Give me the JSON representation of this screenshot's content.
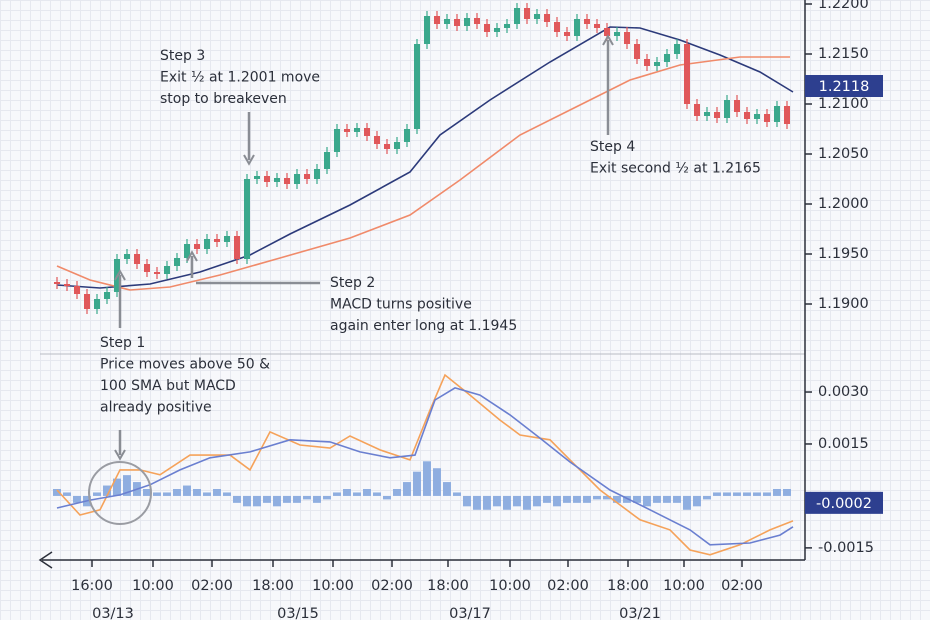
{
  "chart_data": [
    {
      "type": "candlestick",
      "ylim": [
        1.185,
        1.2204
      ],
      "yticks": [
        {
          "value": 1.19,
          "label": "1.1900"
        },
        {
          "value": 1.195,
          "label": "1.1950"
        },
        {
          "value": 1.2,
          "label": "1.2000"
        },
        {
          "value": 1.205,
          "label": "1.2050"
        },
        {
          "value": 1.21,
          "label": "1.2100"
        },
        {
          "value": 1.215,
          "label": "1.2150"
        },
        {
          "value": 1.22,
          "label": "1.2200"
        }
      ],
      "xlim": [
        0,
        74
      ],
      "up_color": "#3aa88c",
      "down_color": "#e0575a",
      "open": [
        1.1922,
        1.192,
        1.1918,
        1.191,
        1.1895,
        1.1905,
        1.1912,
        1.1945,
        1.195,
        1.194,
        1.1932,
        1.193,
        1.1938,
        1.1946,
        1.196,
        1.1955,
        1.1965,
        1.1962,
        1.1968,
        1.1945,
        1.2025,
        1.2028,
        1.2022,
        1.2026,
        1.202,
        1.203,
        1.2025,
        1.2035,
        1.2052,
        1.2075,
        1.2072,
        1.2076,
        1.2068,
        1.206,
        1.2055,
        1.2062,
        1.2075,
        1.216,
        1.2188,
        1.218,
        1.2185,
        1.2178,
        1.2186,
        1.218,
        1.2172,
        1.2176,
        1.218,
        1.2196,
        1.2185,
        1.219,
        1.2182,
        1.2172,
        1.2168,
        1.2185,
        1.218,
        1.2176,
        1.2168,
        1.2172,
        1.216,
        1.2145,
        1.2138,
        1.2142,
        1.215,
        1.216,
        1.21,
        1.2088,
        1.2092,
        1.2086,
        1.2104,
        1.2092,
        1.2085,
        1.209,
        1.2082,
        1.2098
      ],
      "high": [
        1.1927,
        1.1925,
        1.1923,
        1.1915,
        1.191,
        1.1917,
        1.195,
        1.1955,
        1.1955,
        1.1945,
        1.1937,
        1.1943,
        1.1951,
        1.1965,
        1.1965,
        1.197,
        1.197,
        1.1973,
        1.1973,
        1.203,
        1.2033,
        1.2033,
        1.2031,
        1.2031,
        1.2035,
        1.2035,
        1.204,
        1.2057,
        1.208,
        1.208,
        1.2081,
        1.2081,
        1.2073,
        1.2065,
        1.2067,
        1.208,
        1.2165,
        1.2193,
        1.2193,
        1.219,
        1.219,
        1.2191,
        1.2191,
        1.2185,
        1.2181,
        1.2185,
        1.2201,
        1.2201,
        1.2195,
        1.2195,
        1.2187,
        1.2177,
        1.219,
        1.219,
        1.2185,
        1.2181,
        1.2177,
        1.2177,
        1.2165,
        1.215,
        1.2147,
        1.2155,
        1.2165,
        1.2165,
        1.2105,
        1.2097,
        1.2097,
        1.2109,
        1.2109,
        1.2097,
        1.2095,
        1.2095,
        1.2103,
        1.2103
      ],
      "low": [
        1.1915,
        1.1913,
        1.1905,
        1.189,
        1.189,
        1.19,
        1.1907,
        1.194,
        1.1935,
        1.1927,
        1.1925,
        1.1925,
        1.1933,
        1.1941,
        1.195,
        1.195,
        1.1957,
        1.1957,
        1.194,
        1.194,
        1.202,
        1.2017,
        1.2017,
        1.2015,
        1.2015,
        1.202,
        1.202,
        1.203,
        1.2047,
        1.2067,
        1.2067,
        1.2063,
        1.2055,
        1.205,
        1.205,
        1.2057,
        1.207,
        1.2155,
        1.2175,
        1.2175,
        1.2173,
        1.2173,
        1.2175,
        1.2167,
        1.2167,
        1.2171,
        1.2175,
        1.218,
        1.218,
        1.2177,
        1.2167,
        1.2163,
        1.2163,
        1.2175,
        1.2171,
        1.2163,
        1.2163,
        1.2155,
        1.214,
        1.2133,
        1.2133,
        1.2137,
        1.2145,
        1.2095,
        1.2083,
        1.2083,
        1.2081,
        1.2081,
        1.2087,
        1.208,
        1.208,
        1.2077,
        1.2077,
        1.2075
      ],
      "close": [
        1.192,
        1.1918,
        1.191,
        1.1895,
        1.1905,
        1.1912,
        1.1945,
        1.195,
        1.194,
        1.1932,
        1.193,
        1.1938,
        1.1946,
        1.196,
        1.1955,
        1.1965,
        1.1962,
        1.1968,
        1.1945,
        1.2025,
        1.2028,
        1.2022,
        1.2026,
        1.202,
        1.203,
        1.2025,
        1.2035,
        1.2052,
        1.2075,
        1.2072,
        1.2076,
        1.2068,
        1.206,
        1.2055,
        1.2062,
        1.2075,
        1.216,
        1.2188,
        1.218,
        1.2185,
        1.2178,
        1.2186,
        1.218,
        1.2172,
        1.2176,
        1.218,
        1.2196,
        1.2185,
        1.219,
        1.2182,
        1.2172,
        1.2168,
        1.2185,
        1.218,
        1.2176,
        1.2168,
        1.2172,
        1.216,
        1.2145,
        1.2138,
        1.2142,
        1.215,
        1.216,
        1.21,
        1.2088,
        1.2092,
        1.2086,
        1.2104,
        1.2092,
        1.2085,
        1.209,
        1.2082,
        1.2098,
        1.208
      ],
      "lines": [
        {
          "color": "#2c3a7a",
          "x": [
            0,
            4.3,
            9.3,
            14.3,
            19.3,
            23.3,
            29.3,
            35.3,
            38.3,
            43.3,
            49.3,
            55.3,
            58.3,
            62.3,
            66.3,
            70.3,
            73.6
          ],
          "values": [
            1.1919,
            1.1916,
            1.192,
            1.1932,
            1.1949,
            1.197,
            1.1999,
            1.2032,
            1.2069,
            1.2104,
            1.2142,
            1.2177,
            1.2176,
            1.2164,
            1.2149,
            1.2132,
            1.2112
          ]
        },
        {
          "color": "#f08a6a",
          "x": [
            0,
            3.3,
            7.3,
            11.3,
            16.3,
            22.3,
            29.3,
            35.3,
            40.3,
            46.3,
            52.3,
            57.3,
            62.3,
            68.3,
            73.3
          ],
          "values": [
            1.1938,
            1.1924,
            1.1914,
            1.1917,
            1.1929,
            1.1946,
            1.1966,
            1.1989,
            1.2024,
            1.2069,
            1.2099,
            1.2124,
            1.2139,
            1.2147,
            1.2147
          ]
        }
      ],
      "last_value": 1.2118,
      "annotations": [
        {
          "lines": [
            "Step 1",
            "Price moves above 50 &",
            "100 SMA but MACD",
            "already positive"
          ]
        },
        {
          "lines": [
            "Step 2",
            "MACD turns positive",
            "again enter long at 1.1945"
          ]
        },
        {
          "lines": [
            "Step 3",
            "Exit ½ at 1.2001 move",
            "stop to breakeven"
          ]
        },
        {
          "lines": [
            "Step 4",
            "Exit second ½ at 1.2165"
          ]
        }
      ]
    },
    {
      "type": "macd",
      "ylim": [
        -0.00185,
        0.00404
      ],
      "yticks": [
        {
          "value": 0.003,
          "label": "0.0030"
        },
        {
          "value": 0.0015,
          "label": "0.0015"
        },
        {
          "value": -0.0015,
          "label": "-0.0015"
        }
      ],
      "xlim": [
        0,
        74
      ],
      "xticks": [
        {
          "value": 3.5,
          "label": "16:00"
        },
        {
          "value": 9.6,
          "label": "10:00"
        },
        {
          "value": 15.5,
          "label": "02:00"
        },
        {
          "value": 21.6,
          "label": "18:00"
        },
        {
          "value": 27.6,
          "label": "10:00"
        },
        {
          "value": 33.5,
          "label": "02:00"
        },
        {
          "value": 39.1,
          "label": "18:00"
        },
        {
          "value": 45.3,
          "label": "10:00"
        },
        {
          "value": 51.1,
          "label": "02:00"
        },
        {
          "value": 57.1,
          "label": "18:00"
        },
        {
          "value": 62.7,
          "label": "10:00"
        },
        {
          "value": 68.5,
          "label": "02:00"
        }
      ],
      "date_labels": [
        {
          "value": 5.6,
          "label": "03/13"
        },
        {
          "value": 24.1,
          "label": "03/15"
        },
        {
          "value": 41.3,
          "label": "03/17"
        },
        {
          "value": 58.3,
          "label": "03/21"
        }
      ],
      "histogram_color": "#8faee0",
      "histogram": [
        0.0002,
        0.0001,
        -0.0002,
        -0.0003,
        0.0001,
        0.0003,
        0.0005,
        0.0006,
        0.0004,
        0.0002,
        0.0001,
        0.0001,
        0.0002,
        0.0003,
        0.0002,
        0.0001,
        0.0002,
        0.0001,
        -0.0002,
        -0.0003,
        -0.0003,
        -0.0002,
        -0.0003,
        -0.0002,
        -0.0002,
        -0.0001,
        -0.0002,
        -0.0001,
        0.0001,
        0.0002,
        0.0001,
        0.0002,
        0.0001,
        -0.0001,
        0.0002,
        0.0004,
        0.0007,
        0.001,
        0.0008,
        0.0004,
        0.0001,
        -0.0003,
        -0.0004,
        -0.0004,
        -0.0003,
        -0.0004,
        -0.0003,
        -0.0004,
        -0.0003,
        -0.0002,
        -0.0003,
        -0.0002,
        -0.0002,
        -0.0002,
        -0.0001,
        -0.0001,
        -0.0002,
        -0.0002,
        -0.0002,
        -0.0003,
        -0.0002,
        -0.0002,
        -0.0002,
        -0.0004,
        -0.0003,
        -0.0001,
        0.0001,
        0.0001,
        0.0001,
        0.0001,
        0.0001,
        0.0001,
        0.0002,
        0.0002
      ],
      "lines": [
        {
          "color": "#f5a25a",
          "x": [
            0,
            2.3,
            4.3,
            6.3,
            8.3,
            10.3,
            13.3,
            17.3,
            19.3,
            21.3,
            24.3,
            27.3,
            29.3,
            32.3,
            35.3,
            37.3,
            38.8,
            41.3,
            44.3,
            46.3,
            49.3,
            51.3,
            54.3,
            58.3,
            61.3,
            63.3,
            65.3,
            68.3,
            71.3,
            73.6
          ],
          "values": [
            0.00017,
            -0.00055,
            -0.0004,
            0.00075,
            0.00075,
            0.00061,
            0.00118,
            0.00118,
            0.00075,
            0.00185,
            0.00147,
            0.00138,
            0.00173,
            0.00133,
            0.00104,
            0.00248,
            0.00349,
            0.00291,
            0.00219,
            0.00176,
            0.00162,
            0.00104,
            0.00017,
            -0.00069,
            -0.00098,
            -0.00156,
            -0.0017,
            -0.00141,
            -0.00098,
            -0.00072
          ]
        },
        {
          "color": "#6a7fd0",
          "x": [
            0,
            3.3,
            6.3,
            9.3,
            12.3,
            15.3,
            19.3,
            23.3,
            27.3,
            30.3,
            33.3,
            35.8,
            37.8,
            39.8,
            42.3,
            45.3,
            48.3,
            51.3,
            55.3,
            59.3,
            63.3,
            65.3,
            69.3,
            72.3,
            73.6
          ],
          "values": [
            -0.00035,
            -0.00012,
            3e-05,
            0.00032,
            0.00075,
            0.0011,
            0.00127,
            0.00162,
            0.00156,
            0.00127,
            0.0011,
            0.00118,
            0.00277,
            0.00312,
            0.00291,
            0.00234,
            0.00167,
            0.00098,
            0.00017,
            -0.0004,
            -0.00098,
            -0.00141,
            -0.00136,
            -0.00113,
            -0.00089
          ]
        }
      ],
      "last_value": -0.0002
    }
  ]
}
